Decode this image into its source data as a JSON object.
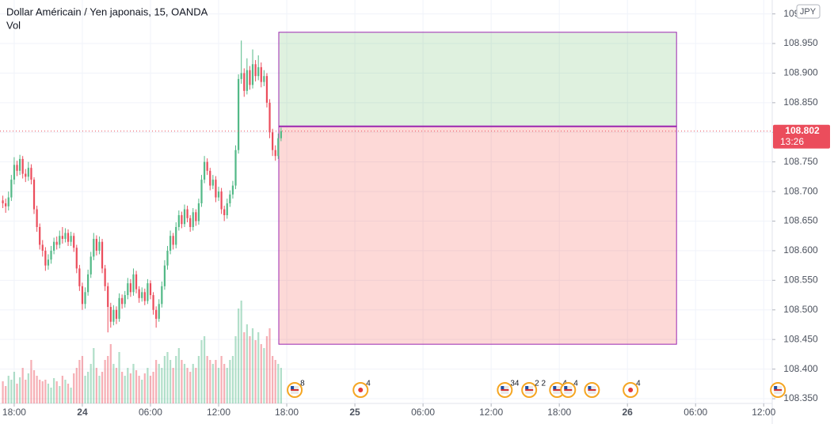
{
  "chart_data": {
    "type": "candlestick",
    "title": "Dollar Américain / Yen japonais, 15, OANDA",
    "subtitle": "Vol",
    "currency": "JPY",
    "up_color": "#53b987",
    "down_color": "#eb4d5c",
    "grid": true,
    "xlim": [
      -5,
      267
    ],
    "xticks": [
      {
        "value": 0,
        "label": "18:00"
      },
      24,
      {
        "value": 48,
        "label": "06:00"
      },
      {
        "value": 72,
        "label": "12:00"
      },
      {
        "value": 96,
        "label": "18:00"
      },
      {
        "value": 120,
        "label": "25"
      },
      {
        "value": 144,
        "label": "06:00"
      },
      {
        "value": 168,
        "label": "12:00"
      },
      {
        "value": 192,
        "label": "18:00"
      },
      {
        "value": 216,
        "label": "26"
      },
      {
        "value": 240,
        "label": "06:00"
      },
      {
        "value": 264,
        "label": "12:00"
      }
    ],
    "ylim": [
      108.342,
      109.0235
    ],
    "yticks": [
      {
        "value": 109.0,
        "label": "109.000"
      },
      {
        "value": 108.95,
        "label": "108.950"
      },
      {
        "value": 108.9,
        "label": "108.900"
      },
      {
        "value": 108.85,
        "label": "108.850"
      },
      {
        "value": 108.8,
        "label": "108.800"
      },
      {
        "value": 108.75,
        "label": "108.750"
      },
      {
        "value": 108.7,
        "label": "108.700"
      },
      {
        "value": 108.65,
        "label": "108.650"
      },
      {
        "value": 108.6,
        "label": "108.600"
      },
      {
        "value": 108.55,
        "label": "108.550"
      },
      {
        "value": 108.5,
        "label": "108.500"
      },
      {
        "value": 108.45,
        "label": "108.450"
      },
      {
        "value": 108.4,
        "label": "108.400"
      },
      {
        "value": 108.35,
        "label": "108.350"
      }
    ],
    "last_price": 108.802,
    "countdown": "13:26",
    "x": [
      -4,
      -3,
      -2,
      -1,
      0,
      1,
      2,
      3,
      4,
      5,
      6,
      7,
      8,
      9,
      10,
      11,
      12,
      13,
      14,
      15,
      16,
      17,
      18,
      19,
      20,
      21,
      22,
      23,
      24,
      25,
      26,
      27,
      28,
      29,
      30,
      31,
      32,
      33,
      34,
      35,
      36,
      37,
      38,
      39,
      40,
      41,
      42,
      43,
      44,
      45,
      46,
      47,
      48,
      49,
      50,
      51,
      52,
      53,
      54,
      55,
      56,
      57,
      58,
      59,
      60,
      61,
      62,
      63,
      64,
      65,
      66,
      67,
      68,
      69,
      70,
      71,
      72,
      73,
      74,
      75,
      76,
      77,
      78,
      79,
      80,
      81,
      82,
      83,
      84,
      85,
      86,
      87,
      88,
      89,
      90,
      91,
      92,
      93,
      94
    ],
    "candles": [
      [
        108.685,
        108.693,
        108.672,
        108.68
      ],
      [
        108.68,
        108.688,
        108.664,
        108.675
      ],
      [
        108.675,
        108.7,
        108.668,
        108.69
      ],
      [
        108.69,
        108.728,
        108.684,
        108.72
      ],
      [
        108.72,
        108.758,
        108.712,
        108.745
      ],
      [
        108.745,
        108.752,
        108.726,
        108.735
      ],
      [
        108.735,
        108.762,
        108.728,
        108.755
      ],
      [
        108.755,
        108.76,
        108.722,
        108.73
      ],
      [
        108.73,
        108.738,
        108.716,
        108.725
      ],
      [
        108.725,
        108.75,
        108.718,
        108.74
      ],
      [
        108.74,
        108.746,
        108.712,
        108.72
      ],
      [
        108.72,
        108.724,
        108.662,
        108.67
      ],
      [
        108.67,
        108.676,
        108.632,
        108.64
      ],
      [
        108.64,
        108.646,
        108.602,
        108.61
      ],
      [
        108.61,
        108.618,
        108.59,
        108.6
      ],
      [
        108.6,
        108.606,
        108.566,
        108.575
      ],
      [
        108.575,
        108.594,
        108.568,
        108.585
      ],
      [
        108.585,
        108.608,
        108.578,
        108.6
      ],
      [
        108.6,
        108.622,
        108.594,
        108.615
      ],
      [
        108.615,
        108.624,
        108.602,
        108.61
      ],
      [
        108.61,
        108.634,
        108.604,
        108.625
      ],
      [
        108.625,
        108.64,
        108.612,
        108.62
      ],
      [
        108.62,
        108.638,
        108.614,
        108.63
      ],
      [
        108.63,
        108.636,
        108.608,
        108.615
      ],
      [
        108.615,
        108.632,
        108.608,
        108.625
      ],
      [
        108.625,
        108.63,
        108.598,
        108.605
      ],
      [
        108.605,
        108.61,
        108.562,
        108.57
      ],
      [
        108.57,
        108.576,
        108.532,
        108.54
      ],
      [
        108.54,
        108.546,
        108.5,
        108.51
      ],
      [
        108.51,
        108.538,
        108.502,
        108.53
      ],
      [
        108.53,
        108.568,
        108.524,
        108.56
      ],
      [
        108.56,
        108.598,
        108.554,
        108.59
      ],
      [
        108.59,
        108.63,
        108.584,
        108.62
      ],
      [
        108.62,
        108.626,
        108.592,
        108.6
      ],
      [
        108.6,
        108.624,
        108.594,
        108.615
      ],
      [
        108.615,
        108.62,
        108.562,
        108.57
      ],
      [
        108.57,
        108.576,
        108.532,
        108.54
      ],
      [
        108.54,
        108.546,
        108.462,
        108.505
      ],
      [
        108.505,
        108.512,
        108.47,
        108.48
      ],
      [
        108.48,
        108.508,
        108.474,
        108.5
      ],
      [
        108.5,
        108.506,
        108.476,
        108.485
      ],
      [
        108.485,
        108.528,
        108.48,
        108.52
      ],
      [
        108.52,
        108.526,
        108.502,
        108.51
      ],
      [
        108.51,
        108.532,
        108.504,
        108.525
      ],
      [
        108.525,
        108.554,
        108.518,
        108.545
      ],
      [
        108.545,
        108.552,
        108.522,
        108.53
      ],
      [
        108.53,
        108.57,
        108.524,
        108.56
      ],
      [
        108.56,
        108.566,
        108.528,
        108.535
      ],
      [
        108.535,
        108.54,
        108.512,
        108.52
      ],
      [
        108.52,
        108.538,
        108.514,
        108.53
      ],
      [
        108.53,
        108.536,
        108.508,
        108.515
      ],
      [
        108.515,
        108.552,
        108.51,
        108.545
      ],
      [
        108.545,
        108.55,
        108.518,
        108.525
      ],
      [
        108.525,
        108.53,
        108.492,
        108.5
      ],
      [
        108.5,
        108.506,
        108.47,
        108.485
      ],
      [
        108.485,
        108.518,
        108.48,
        108.51
      ],
      [
        108.51,
        108.548,
        108.504,
        108.54
      ],
      [
        108.54,
        108.584,
        108.534,
        108.575
      ],
      [
        108.575,
        108.608,
        108.568,
        108.6
      ],
      [
        108.6,
        108.634,
        108.594,
        108.625
      ],
      [
        108.625,
        108.63,
        108.602,
        108.61
      ],
      [
        108.61,
        108.648,
        108.604,
        108.64
      ],
      [
        108.64,
        108.668,
        108.634,
        108.66
      ],
      [
        108.66,
        108.666,
        108.638,
        108.645
      ],
      [
        108.645,
        108.678,
        108.64,
        108.67
      ],
      [
        108.67,
        108.676,
        108.648,
        108.655
      ],
      [
        108.655,
        108.66,
        108.632,
        108.64
      ],
      [
        108.64,
        108.672,
        108.634,
        108.665
      ],
      [
        108.665,
        108.67,
        108.642,
        108.65
      ],
      [
        108.65,
        108.688,
        108.644,
        108.68
      ],
      [
        108.68,
        108.728,
        108.674,
        108.72
      ],
      [
        108.72,
        108.76,
        108.714,
        108.75
      ],
      [
        108.75,
        108.756,
        108.728,
        108.735
      ],
      [
        108.735,
        108.74,
        108.702,
        108.71
      ],
      [
        108.71,
        108.728,
        108.704,
        108.72
      ],
      [
        108.72,
        108.726,
        108.682,
        108.69
      ],
      [
        108.69,
        108.708,
        108.684,
        108.7
      ],
      [
        108.7,
        108.706,
        108.662,
        108.67
      ],
      [
        108.67,
        108.676,
        108.65,
        108.66
      ],
      [
        108.66,
        108.688,
        108.654,
        108.68
      ],
      [
        108.68,
        108.702,
        108.674,
        108.695
      ],
      [
        108.695,
        108.718,
        108.688,
        108.71
      ],
      [
        108.71,
        108.778,
        108.704,
        108.77
      ],
      [
        108.77,
        108.898,
        108.764,
        108.89
      ],
      [
        108.89,
        108.955,
        108.882,
        108.9
      ],
      [
        108.9,
        108.908,
        108.86,
        108.87
      ],
      [
        108.87,
        108.925,
        108.864,
        108.905
      ],
      [
        108.905,
        108.912,
        108.872,
        108.88
      ],
      [
        108.88,
        108.94,
        108.874,
        108.915
      ],
      [
        108.915,
        108.922,
        108.886,
        108.895
      ],
      [
        108.895,
        108.93,
        108.888,
        108.91
      ],
      [
        108.91,
        108.918,
        108.876,
        108.885
      ],
      [
        108.885,
        108.905,
        108.878,
        108.895
      ],
      [
        108.895,
        108.9,
        108.842,
        108.85
      ],
      [
        108.85,
        108.856,
        108.79,
        108.8
      ],
      [
        108.8,
        108.806,
        108.76,
        108.77
      ],
      [
        108.77,
        108.778,
        108.752,
        108.76
      ],
      [
        108.76,
        108.798,
        108.755,
        108.79
      ],
      [
        108.79,
        108.808,
        108.785,
        108.802
      ]
    ],
    "volume": [
      28,
      22,
      35,
      30,
      40,
      25,
      33,
      45,
      30,
      38,
      55,
      42,
      35,
      30,
      28,
      30,
      25,
      20,
      32,
      28,
      22,
      35,
      30,
      25,
      20,
      38,
      45,
      55,
      60,
      35,
      40,
      50,
      70,
      45,
      35,
      40,
      55,
      60,
      75,
      50,
      45,
      65,
      40,
      35,
      45,
      38,
      50,
      42,
      35,
      30,
      38,
      45,
      35,
      40,
      55,
      50,
      45,
      60,
      65,
      55,
      45,
      60,
      70,
      55,
      50,
      45,
      40,
      50,
      45,
      60,
      80,
      85,
      60,
      55,
      50,
      55,
      45,
      60,
      50,
      45,
      55,
      60,
      85,
      120,
      130,
      90,
      100,
      85,
      95,
      80,
      90,
      75,
      70,
      85,
      95,
      60,
      55,
      50,
      45
    ],
    "position": {
      "x_start": 93.2,
      "x_end": 233.3,
      "entry": 108.81,
      "target": 108.969,
      "stop": 108.442
    },
    "events": {
      "x": [
        98.8,
        122,
        172.8,
        181.4,
        191.2,
        195.1,
        203.5,
        217.1,
        269
      ],
      "labels": [
        "8",
        "4",
        "34",
        "2 2",
        "4",
        "4",
        null,
        "4",
        null
      ],
      "kinds": [
        "flag",
        "dot",
        "flag",
        "flag",
        "flag",
        "flag",
        "flag",
        "dot",
        "flag"
      ]
    }
  }
}
